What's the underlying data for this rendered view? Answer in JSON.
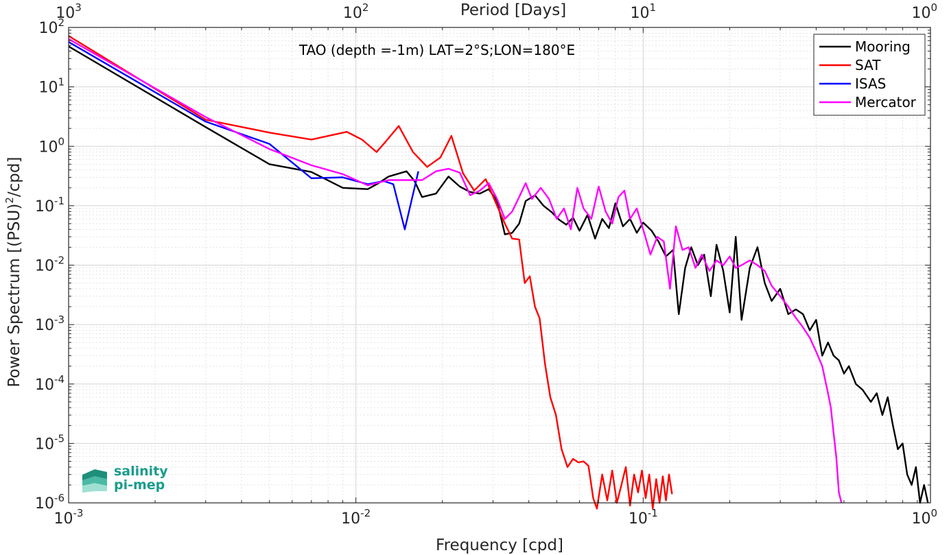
{
  "chart_data": {
    "type": "line",
    "title": "TAO (depth =-1m) LAT=2°S;LON=180°E",
    "xlabel": "Frequency [cpd]",
    "ylabel": "Power Spectrum [(PSU)²/cpd]",
    "ylabel_parts": [
      "Power Spectrum [(PSU)",
      "2",
      "/cpd]"
    ],
    "top_xlabel": "Period [Days]",
    "xscale": "log",
    "yscale": "log",
    "xlim": [
      0.001,
      1
    ],
    "ylim": [
      1e-06,
      100
    ],
    "grid": true,
    "legend_position": "top-right",
    "x_ticks": [
      {
        "value": 0.001,
        "base": "10",
        "exp": "-3"
      },
      {
        "value": 0.01,
        "base": "10",
        "exp": "-2"
      },
      {
        "value": 0.1,
        "base": "10",
        "exp": "-1"
      },
      {
        "value": 1,
        "base": "10",
        "exp": "0"
      }
    ],
    "top_ticks": [
      {
        "value": 0.001,
        "base": "10",
        "exp": "3"
      },
      {
        "value": 0.01,
        "base": "10",
        "exp": "2"
      },
      {
        "value": 0.1,
        "base": "10",
        "exp": "1"
      },
      {
        "value": 1,
        "base": "10",
        "exp": "0"
      }
    ],
    "y_ticks": [
      {
        "value": 1e-06,
        "base": "10",
        "exp": "-6"
      },
      {
        "value": 1e-05,
        "base": "10",
        "exp": "-5"
      },
      {
        "value": 0.0001,
        "base": "10",
        "exp": "-4"
      },
      {
        "value": 0.001,
        "base": "10",
        "exp": "-3"
      },
      {
        "value": 0.01,
        "base": "10",
        "exp": "-2"
      },
      {
        "value": 0.1,
        "base": "10",
        "exp": "-1"
      },
      {
        "value": 1,
        "base": "10",
        "exp": "0"
      },
      {
        "value": 10,
        "base": "10",
        "exp": "1"
      },
      {
        "value": 100,
        "base": "10",
        "exp": "2"
      }
    ],
    "series": [
      {
        "name": "Mooring",
        "color": "#000000",
        "points": [
          [
            0.001,
            48
          ],
          [
            0.003,
            2.1
          ],
          [
            0.005,
            0.5
          ],
          [
            0.007,
            0.37
          ],
          [
            0.009,
            0.2
          ],
          [
            0.011,
            0.19
          ],
          [
            0.012,
            0.24
          ],
          [
            0.013,
            0.31
          ],
          [
            0.015,
            0.38
          ],
          [
            0.016,
            0.26
          ],
          [
            0.017,
            0.14
          ],
          [
            0.019,
            0.16
          ],
          [
            0.021,
            0.31
          ],
          [
            0.023,
            0.21
          ],
          [
            0.025,
            0.17
          ],
          [
            0.027,
            0.16
          ],
          [
            0.029,
            0.19
          ],
          [
            0.031,
            0.12
          ],
          [
            0.033,
            0.033
          ],
          [
            0.035,
            0.035
          ],
          [
            0.037,
            0.05
          ],
          [
            0.039,
            0.12
          ],
          [
            0.042,
            0.15
          ],
          [
            0.045,
            0.1
          ],
          [
            0.048,
            0.078
          ],
          [
            0.051,
            0.058
          ],
          [
            0.054,
            0.048
          ],
          [
            0.057,
            0.063
          ],
          [
            0.06,
            0.038
          ],
          [
            0.064,
            0.07
          ],
          [
            0.068,
            0.028
          ],
          [
            0.072,
            0.06
          ],
          [
            0.076,
            0.042
          ],
          [
            0.08,
            0.11
          ],
          [
            0.085,
            0.045
          ],
          [
            0.09,
            0.06
          ],
          [
            0.095,
            0.035
          ],
          [
            0.1,
            0.052
          ],
          [
            0.107,
            0.038
          ],
          [
            0.113,
            0.025
          ],
          [
            0.12,
            0.014
          ],
          [
            0.127,
            0.018
          ],
          [
            0.133,
            0.0015
          ],
          [
            0.14,
            0.009
          ],
          [
            0.147,
            0.02
          ],
          [
            0.155,
            0.01
          ],
          [
            0.163,
            0.015
          ],
          [
            0.172,
            0.003
          ],
          [
            0.18,
            0.022
          ],
          [
            0.19,
            0.008
          ],
          [
            0.2,
            0.0016
          ],
          [
            0.21,
            0.03
          ],
          [
            0.22,
            0.0012
          ],
          [
            0.235,
            0.009
          ],
          [
            0.25,
            0.02
          ],
          [
            0.265,
            0.005
          ],
          [
            0.28,
            0.0025
          ],
          [
            0.3,
            0.004
          ],
          [
            0.32,
            0.0015
          ],
          [
            0.34,
            0.0018
          ],
          [
            0.36,
            0.0015
          ],
          [
            0.38,
            0.0008
          ],
          [
            0.4,
            0.0012
          ],
          [
            0.42,
            0.0003
          ],
          [
            0.44,
            0.0005
          ],
          [
            0.46,
            0.0003
          ],
          [
            0.48,
            0.00025
          ],
          [
            0.5,
            0.00015
          ],
          [
            0.52,
            0.0002
          ],
          [
            0.55,
            0.0001
          ],
          [
            0.58,
            8e-05
          ],
          [
            0.62,
            5e-05
          ],
          [
            0.65,
            7e-05
          ],
          [
            0.68,
            3e-05
          ],
          [
            0.71,
            6e-05
          ],
          [
            0.74,
            2e-05
          ],
          [
            0.77,
            8e-06
          ],
          [
            0.8,
            1e-05
          ],
          [
            0.83,
            3e-06
          ],
          [
            0.86,
            2e-06
          ],
          [
            0.89,
            4e-06
          ],
          [
            0.92,
            1e-06
          ],
          [
            0.95,
            2e-06
          ],
          [
            0.98,
            1e-06
          ]
        ]
      },
      {
        "name": "SAT",
        "color": "#ff0000",
        "points": [
          [
            0.001,
            72
          ],
          [
            0.003,
            2.8
          ],
          [
            0.005,
            1.7
          ],
          [
            0.007,
            1.3
          ],
          [
            0.0093,
            1.75
          ],
          [
            0.0105,
            1.3
          ],
          [
            0.0118,
            0.8
          ],
          [
            0.0127,
            1.2
          ],
          [
            0.0141,
            2.2
          ],
          [
            0.0158,
            0.8
          ],
          [
            0.0177,
            0.45
          ],
          [
            0.0197,
            0.65
          ],
          [
            0.0215,
            1.5
          ],
          [
            0.0236,
            0.35
          ],
          [
            0.0258,
            0.18
          ],
          [
            0.0283,
            0.28
          ],
          [
            0.031,
            0.1
          ],
          [
            0.033,
            0.05
          ],
          [
            0.035,
            0.028
          ],
          [
            0.037,
            0.027
          ],
          [
            0.0387,
            0.005
          ],
          [
            0.0403,
            0.0065
          ],
          [
            0.042,
            0.002
          ],
          [
            0.0436,
            0.00127
          ],
          [
            0.0455,
            0.00022
          ],
          [
            0.0475,
            6e-05
          ],
          [
            0.0497,
            3e-05
          ],
          [
            0.052,
            8e-06
          ],
          [
            0.0545,
            4e-06
          ],
          [
            0.057,
            5.5e-06
          ],
          [
            0.0595,
            4.8e-06
          ],
          [
            0.062,
            5e-06
          ],
          [
            0.0645,
            4.2e-06
          ],
          [
            0.067,
            1.2e-06
          ],
          [
            0.069,
            8e-07
          ],
          [
            0.072,
            3e-06
          ],
          [
            0.075,
            1.1e-06
          ],
          [
            0.078,
            3.5e-06
          ],
          [
            0.081,
            1e-06
          ],
          [
            0.084,
            2e-06
          ],
          [
            0.087,
            4e-06
          ],
          [
            0.09,
            9e-07
          ],
          [
            0.093,
            3e-06
          ],
          [
            0.096,
            1.5e-06
          ],
          [
            0.099,
            3.5e-06
          ],
          [
            0.102,
            1.2e-06
          ],
          [
            0.105,
            3e-06
          ],
          [
            0.108,
            8e-07
          ],
          [
            0.111,
            2.5e-06
          ],
          [
            0.114,
            1e-06
          ],
          [
            0.117,
            2.8e-06
          ],
          [
            0.12,
            1.1e-06
          ],
          [
            0.123,
            3e-06
          ],
          [
            0.126,
            1.4e-06
          ]
        ]
      },
      {
        "name": "ISAS",
        "color": "#0000ff",
        "points": [
          [
            0.001,
            57
          ],
          [
            0.003,
            2.6
          ],
          [
            0.005,
            1.1
          ],
          [
            0.007,
            0.29
          ],
          [
            0.009,
            0.3
          ],
          [
            0.011,
            0.23
          ],
          [
            0.0125,
            0.26
          ],
          [
            0.0135,
            0.23
          ],
          [
            0.0148,
            0.04
          ],
          [
            0.0165,
            0.38
          ]
        ]
      },
      {
        "name": "Mercator",
        "color": "#ff00ff",
        "points": [
          [
            0.001,
            64
          ],
          [
            0.003,
            3.1
          ],
          [
            0.005,
            0.9
          ],
          [
            0.007,
            0.48
          ],
          [
            0.009,
            0.34
          ],
          [
            0.011,
            0.22
          ],
          [
            0.013,
            0.27
          ],
          [
            0.015,
            0.27
          ],
          [
            0.017,
            0.27
          ],
          [
            0.019,
            0.38
          ],
          [
            0.021,
            0.42
          ],
          [
            0.023,
            0.36
          ],
          [
            0.025,
            0.15
          ],
          [
            0.027,
            0.18
          ],
          [
            0.029,
            0.24
          ],
          [
            0.031,
            0.13
          ],
          [
            0.033,
            0.06
          ],
          [
            0.035,
            0.08
          ],
          [
            0.037,
            0.14
          ],
          [
            0.039,
            0.24
          ],
          [
            0.041,
            0.13
          ],
          [
            0.044,
            0.2
          ],
          [
            0.047,
            0.13
          ],
          [
            0.05,
            0.06
          ],
          [
            0.053,
            0.09
          ],
          [
            0.056,
            0.04
          ],
          [
            0.059,
            0.2
          ],
          [
            0.062,
            0.09
          ],
          [
            0.066,
            0.06
          ],
          [
            0.07,
            0.21
          ],
          [
            0.074,
            0.08
          ],
          [
            0.078,
            0.05
          ],
          [
            0.082,
            0.14
          ],
          [
            0.086,
            0.18
          ],
          [
            0.09,
            0.06
          ],
          [
            0.095,
            0.09
          ],
          [
            0.1,
            0.04
          ],
          [
            0.106,
            0.015
          ],
          [
            0.112,
            0.03
          ],
          [
            0.118,
            0.025
          ],
          [
            0.124,
            0.004
          ],
          [
            0.13,
            0.045
          ],
          [
            0.137,
            0.018
          ],
          [
            0.144,
            0.02
          ],
          [
            0.152,
            0.009
          ],
          [
            0.16,
            0.015
          ],
          [
            0.17,
            0.008
          ],
          [
            0.18,
            0.012
          ],
          [
            0.19,
            0.01
          ],
          [
            0.2,
            0.014
          ],
          [
            0.21,
            0.009
          ],
          [
            0.22,
            0.01
          ],
          [
            0.235,
            0.012
          ],
          [
            0.25,
            0.01
          ],
          [
            0.265,
            0.008
          ],
          [
            0.28,
            0.0045
          ],
          [
            0.3,
            0.003
          ],
          [
            0.32,
            0.002
          ],
          [
            0.34,
            0.0013
          ],
          [
            0.36,
            0.0009
          ],
          [
            0.38,
            0.0006
          ],
          [
            0.4,
            0.00035
          ],
          [
            0.42,
            0.0002
          ],
          [
            0.44,
            7e-05
          ],
          [
            0.45,
            4e-05
          ],
          [
            0.46,
            1.5e-05
          ],
          [
            0.47,
            6e-06
          ],
          [
            0.48,
            1.5e-06
          ],
          [
            0.49,
            1e-06
          ]
        ]
      }
    ]
  },
  "logo": {
    "line1": "salinity",
    "line2": "pi-mep"
  },
  "colors": {
    "axis": "#262626",
    "grid": "#cccccc",
    "logo_dark": "#1e8f7a",
    "logo_light": "#7fd3c4"
  }
}
